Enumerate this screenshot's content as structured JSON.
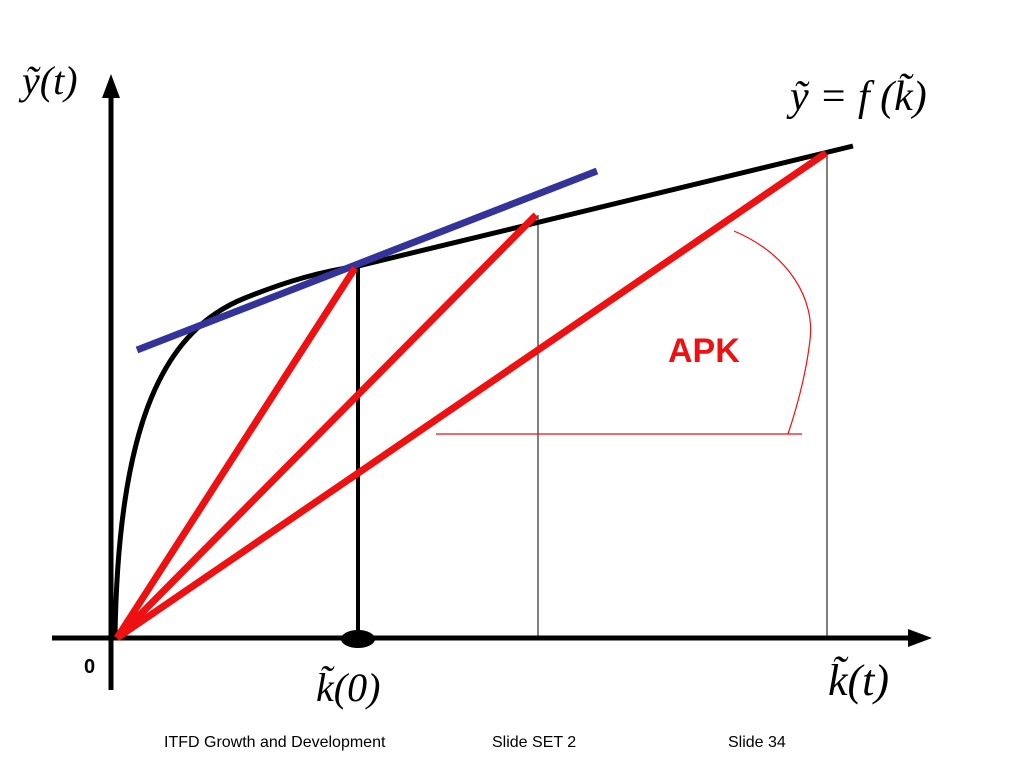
{
  "slide": {
    "y_axis_label": "ỹ(t)",
    "x_axis_label": "k̃(t)",
    "curve_label": "ỹ = f (k̃)",
    "k0_label": "k̃(0)",
    "origin_label": "0",
    "angle_label": "APK",
    "colors": {
      "axes": "#000000",
      "production_curve": "#000000",
      "tangent_line": "#333399",
      "ray_lines": "#ee1111",
      "angle_marker": "#ee1111"
    }
  },
  "footer": {
    "left": "ITFD Growth and Development",
    "middle": "Slide SET 2",
    "right": "Slide 34"
  }
}
